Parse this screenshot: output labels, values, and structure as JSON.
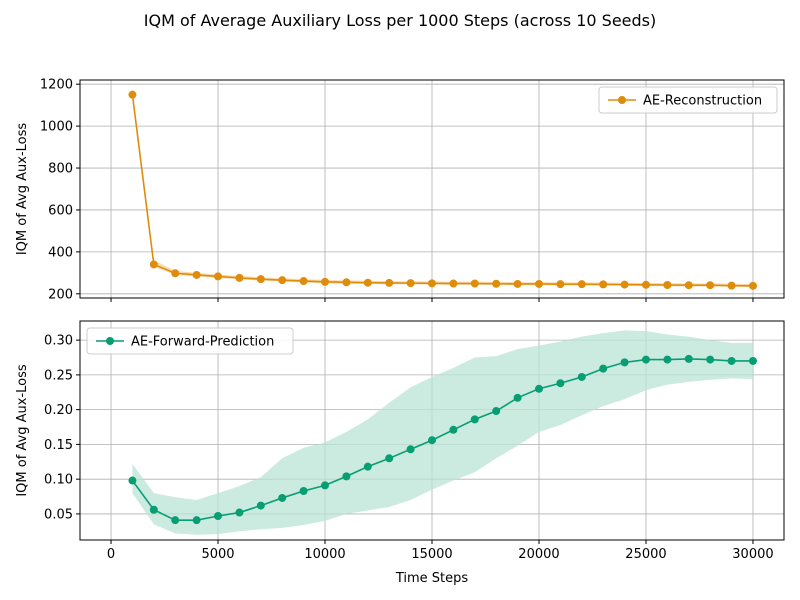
{
  "figure": {
    "title": "IQM of Average Auxiliary Loss per 1000 Steps (across 10 Seeds)"
  },
  "chart_data": [
    {
      "type": "line",
      "title": "",
      "xlabel": "",
      "ylabel": "IQM of Avg Aux-Loss",
      "xlim": [
        -1450,
        31450
      ],
      "ylim": [
        180,
        1220
      ],
      "xticks": [
        0,
        5000,
        10000,
        15000,
        20000,
        25000,
        30000
      ],
      "xtick_labels": [],
      "yticks": [
        200,
        400,
        600,
        800,
        1000,
        1200
      ],
      "ytick_labels": [
        "200",
        "400",
        "600",
        "800",
        "1000",
        "1200"
      ],
      "grid": true,
      "legend_position": "upper-right",
      "x": [
        1000,
        2000,
        3000,
        4000,
        5000,
        6000,
        7000,
        8000,
        9000,
        10000,
        11000,
        12000,
        13000,
        14000,
        15000,
        16000,
        17000,
        18000,
        19000,
        20000,
        21000,
        22000,
        23000,
        24000,
        25000,
        26000,
        27000,
        28000,
        29000,
        30000
      ],
      "series": [
        {
          "name": "AE-Reconstruction",
          "color": "#e08c0b",
          "band_color": "#f7cf95",
          "marker": "circle",
          "values": [
            1150,
            340,
            298,
            290,
            283,
            276,
            270,
            265,
            261,
            257,
            255,
            253,
            252,
            251,
            250,
            249,
            249,
            248,
            247,
            247,
            246,
            246,
            245,
            244,
            243,
            242,
            241,
            241,
            239,
            238
          ],
          "lower": [
            1150,
            330,
            290,
            283,
            276,
            269,
            263,
            258,
            254,
            250,
            248,
            247,
            246,
            245,
            244,
            243,
            243,
            242,
            241,
            241,
            240,
            240,
            239,
            238,
            237,
            236,
            235,
            235,
            233,
            232
          ],
          "upper": [
            1150,
            360,
            310,
            300,
            292,
            285,
            279,
            274,
            270,
            266,
            264,
            262,
            261,
            260,
            259,
            258,
            258,
            257,
            256,
            256,
            255,
            255,
            254,
            253,
            252,
            251,
            250,
            250,
            248,
            247
          ]
        }
      ]
    },
    {
      "type": "line",
      "title": "",
      "xlabel": "Time Steps",
      "ylabel": "IQM of Avg Aux-Loss",
      "xlim": [
        -1450,
        31450
      ],
      "ylim": [
        0.0125,
        0.3275
      ],
      "xticks": [
        0,
        5000,
        10000,
        15000,
        20000,
        25000,
        30000
      ],
      "xtick_labels": [
        "0",
        "5000",
        "10000",
        "15000",
        "20000",
        "25000",
        "30000"
      ],
      "yticks": [
        0.05,
        0.1,
        0.15,
        0.2,
        0.25,
        0.3
      ],
      "ytick_labels": [
        "0.05",
        "0.10",
        "0.15",
        "0.20",
        "0.25",
        "0.30"
      ],
      "grid": true,
      "legend_position": "upper-left",
      "x": [
        1000,
        2000,
        3000,
        4000,
        5000,
        6000,
        7000,
        8000,
        9000,
        10000,
        11000,
        12000,
        13000,
        14000,
        15000,
        16000,
        17000,
        18000,
        19000,
        20000,
        21000,
        22000,
        23000,
        24000,
        25000,
        26000,
        27000,
        28000,
        29000,
        30000
      ],
      "series": [
        {
          "name": "AE-Forward-Prediction",
          "color": "#079e73",
          "band_color": "#b9e3d6",
          "marker": "circle",
          "values": [
            0.098,
            0.056,
            0.041,
            0.041,
            0.047,
            0.052,
            0.062,
            0.073,
            0.083,
            0.091,
            0.104,
            0.118,
            0.13,
            0.143,
            0.156,
            0.171,
            0.186,
            0.198,
            0.217,
            0.23,
            0.238,
            0.247,
            0.259,
            0.268,
            0.272,
            0.272,
            0.273,
            0.272,
            0.27,
            0.27
          ],
          "lower": [
            0.08,
            0.035,
            0.022,
            0.02,
            0.021,
            0.025,
            0.028,
            0.03,
            0.034,
            0.04,
            0.05,
            0.055,
            0.06,
            0.07,
            0.085,
            0.098,
            0.11,
            0.13,
            0.148,
            0.168,
            0.178,
            0.192,
            0.205,
            0.215,
            0.228,
            0.236,
            0.24,
            0.243,
            0.245,
            0.244
          ],
          "upper": [
            0.122,
            0.08,
            0.074,
            0.07,
            0.08,
            0.09,
            0.103,
            0.13,
            0.145,
            0.153,
            0.168,
            0.186,
            0.21,
            0.232,
            0.247,
            0.26,
            0.275,
            0.277,
            0.287,
            0.292,
            0.298,
            0.305,
            0.31,
            0.314,
            0.313,
            0.308,
            0.305,
            0.3,
            0.296,
            0.296
          ]
        }
      ]
    }
  ]
}
